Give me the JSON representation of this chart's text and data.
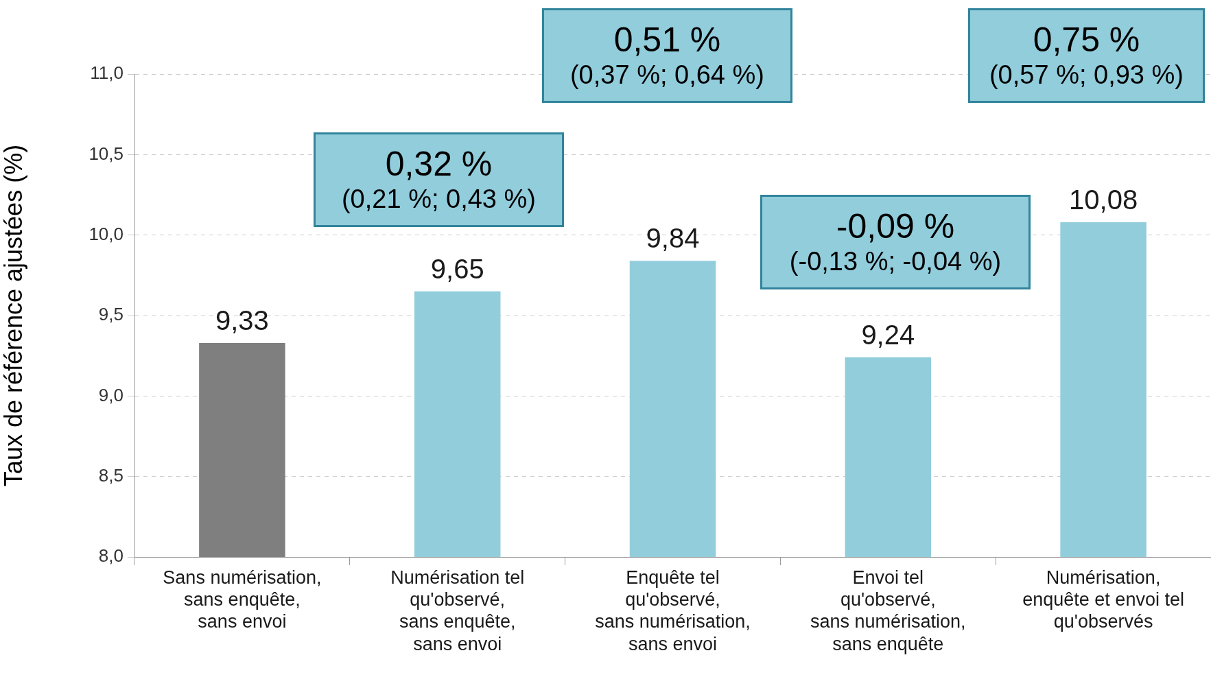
{
  "chart_data": {
    "type": "bar",
    "ylabel": "Taux de référence ajustées (%)",
    "categories": [
      "Sans numérisation, sans enquête, sans envoi",
      "Numérisation tel qu'observé, sans enquête, sans envoi",
      "Enquête tel qu'observé, sans numérisation, sans envoi",
      "Envoi tel qu'observé, sans numérisation, sans enquête",
      "Numérisation, enquête et envoi tel qu'observés"
    ],
    "values": [
      9.33,
      9.65,
      9.84,
      9.24,
      10.08
    ],
    "colors": [
      "#7f7f7f",
      "#92cddc",
      "#92cddc",
      "#92cddc",
      "#92cddc"
    ],
    "ylim": [
      8,
      11
    ],
    "yticks": [
      {
        "value": 8,
        "label": "8,0"
      },
      {
        "value": 8.5,
        "label": "8,5"
      },
      {
        "value": 9,
        "label": "9,0"
      },
      {
        "value": 9.5,
        "label": "9,5"
      },
      {
        "value": 10,
        "label": "10,0"
      },
      {
        "value": 10.5,
        "label": "10,5"
      },
      {
        "value": 11,
        "label": "11,0"
      }
    ],
    "value_labels": [
      "9,33",
      "9,65",
      "9,84",
      "9,24",
      "10,08"
    ],
    "grid": "y",
    "legend": false,
    "annotations": [
      "0,32 %\n(0,21 %; 0,43 %)",
      "0,51 %\n(0,37 %; 0,64 %)",
      "-0,09 %\n(-0,13 %; -0,04 %)",
      "0,75 %\n(0,57 %; 0,93 %)"
    ]
  }
}
